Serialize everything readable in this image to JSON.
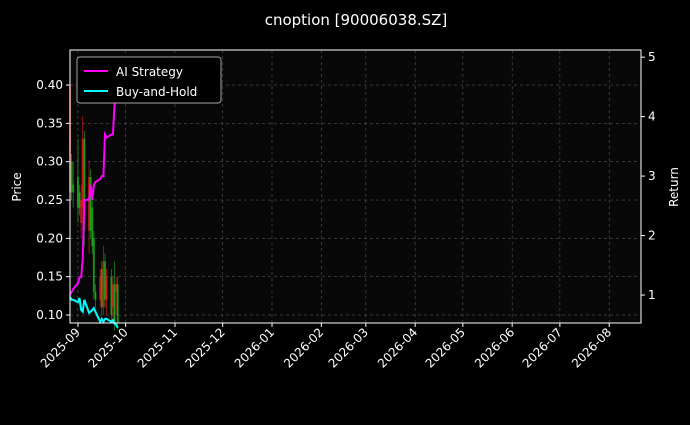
{
  "chart_data": {
    "type": "line",
    "title": "cnoption [90006038.SZ]",
    "ylabel": "Price",
    "ylabel_right": "Return",
    "xlim": [
      "2025-08-27",
      "2026-08-21"
    ],
    "ylim": [
      0.0896,
      0.4457
    ],
    "ylim_right": [
      0.53,
      5.12
    ],
    "grid": true,
    "legend_placement": "top-left",
    "x_ticks": [
      "2025-09",
      "2025-10",
      "2025-11",
      "2025-12",
      "2026-01",
      "2026-02",
      "2026-03",
      "2026-04",
      "2026-05",
      "2026-06",
      "2026-07",
      "2026-08"
    ],
    "y_ticks": [
      0.1,
      0.15,
      0.2,
      0.25,
      0.3,
      0.35,
      0.4
    ],
    "y_ticks_right": [
      1,
      2,
      3,
      4,
      5
    ],
    "dates": [
      "2025-08-27",
      "2025-08-28",
      "2025-08-29",
      "2025-09-01",
      "2025-09-02",
      "2025-09-03",
      "2025-09-04",
      "2025-09-05",
      "2025-09-08",
      "2025-09-09",
      "2025-09-10",
      "2025-09-11",
      "2025-09-12",
      "2025-09-15",
      "2025-09-16",
      "2025-09-17",
      "2025-09-18",
      "2025-09-19",
      "2025-09-22",
      "2025-09-23",
      "2025-09-24",
      "2025-09-25",
      "2025-09-26"
    ],
    "series": [
      {
        "name": "AI Strategy",
        "color": "#ff00ff",
        "axis": "right",
        "values": [
          1.0,
          1.05,
          1.1,
          1.2,
          1.3,
          1.3,
          1.6,
          2.6,
          2.6,
          2.85,
          2.6,
          2.85,
          2.9,
          2.95,
          3.0,
          3.0,
          3.7,
          3.65,
          3.7,
          3.7,
          4.2,
          4.4,
          4.7
        ]
      },
      {
        "name": "Buy-and-Hold",
        "color": "#00ffff",
        "axis": "right",
        "values": [
          0.97,
          0.92,
          0.92,
          0.88,
          0.95,
          0.75,
          0.72,
          0.92,
          0.7,
          0.72,
          0.75,
          0.78,
          0.72,
          0.55,
          0.6,
          0.55,
          0.6,
          0.6,
          0.55,
          0.58,
          0.52,
          0.5,
          0.45
        ]
      }
    ],
    "candles": {
      "up_color": "#ff2020",
      "down_color": "#20c020",
      "ohlc": [
        [
          0.26,
          0.4,
          0.25,
          0.4
        ],
        [
          0.3,
          0.31,
          0.25,
          0.26
        ],
        [
          0.27,
          0.3,
          0.24,
          0.26
        ],
        [
          0.28,
          0.33,
          0.22,
          0.24
        ],
        [
          0.26,
          0.27,
          0.23,
          0.24
        ],
        [
          0.22,
          0.27,
          0.2,
          0.25
        ],
        [
          0.24,
          0.36,
          0.21,
          0.33
        ],
        [
          0.33,
          0.34,
          0.19,
          0.21
        ],
        [
          0.21,
          0.3,
          0.18,
          0.28
        ],
        [
          0.28,
          0.29,
          0.2,
          0.21
        ],
        [
          0.24,
          0.25,
          0.18,
          0.19
        ],
        [
          0.2,
          0.21,
          0.12,
          0.13
        ],
        [
          0.13,
          0.14,
          0.11,
          0.12
        ],
        [
          0.12,
          0.16,
          0.11,
          0.15
        ],
        [
          0.16,
          0.17,
          0.1,
          0.11
        ],
        [
          0.11,
          0.19,
          0.1,
          0.17
        ],
        [
          0.17,
          0.18,
          0.11,
          0.12
        ],
        [
          0.12,
          0.16,
          0.1,
          0.15
        ],
        [
          0.15,
          0.16,
          0.09,
          0.1
        ],
        [
          0.11,
          0.15,
          0.09,
          0.14
        ],
        [
          0.14,
          0.17,
          0.08,
          0.09
        ],
        [
          0.13,
          0.15,
          0.1,
          0.14
        ],
        [
          0.14,
          0.15,
          0.08,
          0.09
        ]
      ]
    }
  }
}
